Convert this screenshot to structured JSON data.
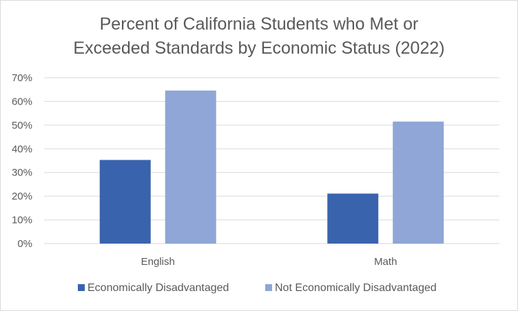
{
  "chart_data": {
    "type": "bar",
    "title_lines": [
      "Percent of California Students who Met or",
      "Exceeded Standards by Economic Status (2022)"
    ],
    "categories": [
      "English",
      "Math"
    ],
    "series": [
      {
        "name": "Economically Disadvantaged",
        "values": [
          35.3,
          21.1
        ],
        "color": "#3a63ad"
      },
      {
        "name": "Not Economically Disadvantaged",
        "values": [
          64.6,
          51.5
        ],
        "color": "#8fa6d6"
      }
    ],
    "y_ticks": [
      "0%",
      "10%",
      "20%",
      "30%",
      "40%",
      "50%",
      "60%",
      "70%"
    ],
    "ylim": [
      0,
      70
    ],
    "grid": true,
    "legend_position": "bottom"
  }
}
